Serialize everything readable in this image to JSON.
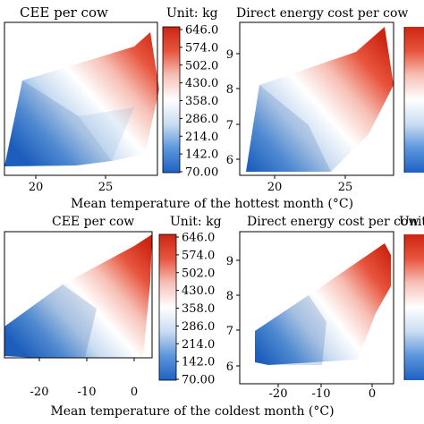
{
  "colorbar": {
    "unit_label": "Unit: kg",
    "unit_label_cut": "Unit:",
    "ticks": [
      "646.0",
      "574.0",
      "502.0",
      "430.0",
      "358.0",
      "286.0",
      "214.0",
      "142.0",
      "70.00"
    ],
    "gradient": [
      "#1f62c4",
      "#5b96dc",
      "#c9dcf1",
      "#ffffff",
      "#f6c0b6",
      "#e8553e",
      "#cc2512"
    ]
  },
  "row_labels": {
    "top": "Mean temperature of the hottest month (°C)",
    "bottom": "Mean temperature of the coldest month (°C)"
  },
  "chart_data": [
    {
      "type": "heatmap",
      "title": "CEE per cow",
      "xlabel": "Mean temperature of the hottest month (°C)",
      "x_ticks": [
        "20",
        "25"
      ],
      "y_ticks": [],
      "colorbar_label": "Unit: kg",
      "colorbar_range": [
        70,
        646
      ],
      "colorbar_ticks": [
        646.0,
        574.0,
        502.0,
        430.0,
        358.0,
        286.0,
        214.0,
        142.0,
        70.0
      ],
      "pattern": "low values (blue) at cooler temperatures, highest (red) near 27–28 °C"
    },
    {
      "type": "heatmap",
      "title": "Direct energy cost per cow",
      "xlabel": "Mean temperature of the hottest month (°C)",
      "x_ticks": [
        "20",
        "25"
      ],
      "y_ticks": [
        "6",
        "7",
        "8",
        "9"
      ],
      "colorbar_label": "Unit:",
      "pattern": "same field as CEE per cow; red maximum near 27 °C, y ≈ 8.5–9"
    },
    {
      "type": "heatmap",
      "title": "CEE per cow",
      "xlabel": "Mean temperature of the coldest month (°C)",
      "x_ticks": [
        "-20",
        "-10",
        "0"
      ],
      "y_ticks": [],
      "colorbar_label": "Unit: kg",
      "colorbar_range": [
        70,
        646
      ],
      "colorbar_ticks": [
        646.0,
        574.0,
        502.0,
        430.0,
        358.0,
        286.0,
        214.0,
        142.0,
        70.0
      ],
      "pattern": "blue at very cold temperatures, red maximum near 0 °C"
    },
    {
      "type": "heatmap",
      "title": "Direct energy cost per cow",
      "xlabel": "Mean temperature of the coldest month (°C)",
      "x_ticks": [
        "-20",
        "-10",
        "0"
      ],
      "y_ticks": [
        "6",
        "7",
        "8",
        "9"
      ],
      "colorbar_label": "Unit:",
      "pattern": "blue at very cold temperatures, red maximum near 0–3 °C, y ≈ 8–9"
    }
  ]
}
